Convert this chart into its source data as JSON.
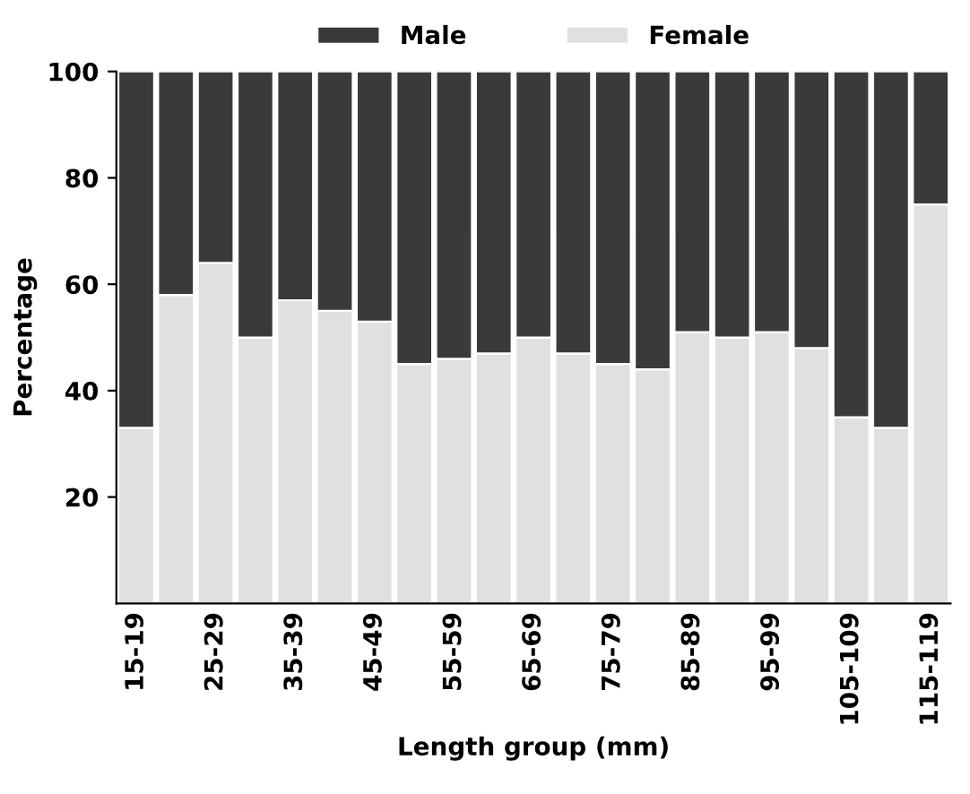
{
  "chart_data": {
    "type": "bar",
    "stacked": true,
    "xlabel": "Length group (mm)",
    "ylabel": "Percentage",
    "categories": [
      "15-19",
      null,
      "25-29",
      null,
      "35-39",
      null,
      "45-49",
      null,
      "55-59",
      null,
      "65-69",
      null,
      "75-79",
      null,
      "85-89",
      null,
      "95-99",
      null,
      "105-109",
      null,
      "115-119"
    ],
    "series": [
      {
        "name": "Female",
        "color": "#e0e0e0",
        "values": [
          33,
          58,
          64,
          50,
          57,
          55,
          53,
          45,
          46,
          47,
          50,
          47,
          45,
          44,
          51,
          50,
          51,
          48,
          35,
          33,
          75
        ]
      },
      {
        "name": "Male",
        "color": "#3a3a3a",
        "values": [
          67,
          42,
          36,
          50,
          43,
          45,
          47,
          55,
          54,
          53,
          50,
          53,
          55,
          56,
          49,
          50,
          49,
          52,
          65,
          67,
          25
        ]
      }
    ],
    "ylim": [
      0,
      100
    ],
    "yticks": [
      20,
      40,
      60,
      80,
      100
    ],
    "grid": false,
    "legend": "top"
  }
}
